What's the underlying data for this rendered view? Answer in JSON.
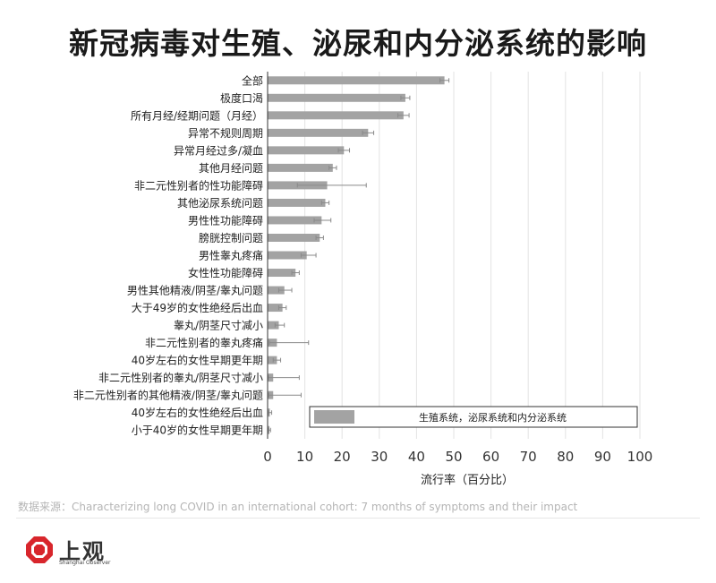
{
  "title": "新冠病毒对生殖、泌尿和内分泌系统的影响",
  "source": "数据来源：Characterizing long COVID in an international cohort: 7 months of symptoms and their impact",
  "logo": {
    "name": "上观",
    "english": "Shanghai Observer",
    "color": "#d8262c"
  },
  "chart_data": {
    "type": "bar",
    "orientation": "horizontal",
    "categories": [
      "全部",
      "极度口渴",
      "所有月经/经期问题（月经）",
      "异常不规则周期",
      "异常月经过多/凝血",
      "其他月经问题",
      "非二元性别者的性功能障碍",
      "其他泌尿系统问题",
      "男性性功能障碍",
      "膀胱控制问题",
      "男性睾丸疼痛",
      "女性性功能障碍",
      "男性其他精液/阴茎/睾丸问题",
      "大于49岁的女性绝经后出血",
      "睾丸/阴茎尺寸减小",
      "非二元性别者的睾丸疼痛",
      "40岁左右的女性早期更年期",
      "非二元性别者的睾丸/阴茎尺寸减小",
      "非二元性别者的其他精液/阴茎/睾丸问题",
      "40岁左右的女性绝经后出血",
      "小于40岁的女性早期更年期"
    ],
    "values": [
      47.5,
      37,
      36.5,
      27,
      20.5,
      17.5,
      16,
      15.5,
      14.5,
      14,
      10.5,
      7.5,
      4.5,
      4,
      3,
      2.5,
      2.5,
      1.5,
      1.5,
      0.6,
      0.5
    ],
    "error_low": [
      46.3,
      35.8,
      35,
      25.5,
      19,
      16.5,
      8,
      14.5,
      12.5,
      13,
      9,
      6.5,
      3,
      3,
      2,
      0.5,
      1.5,
      0.2,
      0.3,
      0.2,
      0.2
    ],
    "error_high": [
      48.7,
      38.2,
      38,
      28.5,
      22,
      18.5,
      26.5,
      16.5,
      17,
      15,
      13,
      8.5,
      6.5,
      5,
      4.5,
      11,
      3.5,
      8.5,
      9,
      1.1,
      0.8
    ],
    "xlabel": "流行率（百分比）",
    "ylabel": "",
    "xlim": [
      0,
      100
    ],
    "xticks": [
      0,
      10,
      20,
      30,
      40,
      50,
      60,
      70,
      80,
      90,
      100
    ],
    "grid": true,
    "legend": {
      "position": "bottom-right",
      "entries": [
        "生殖系统，泌尿系统和内分泌系统"
      ]
    },
    "bar_color": "#a3a3a3"
  }
}
